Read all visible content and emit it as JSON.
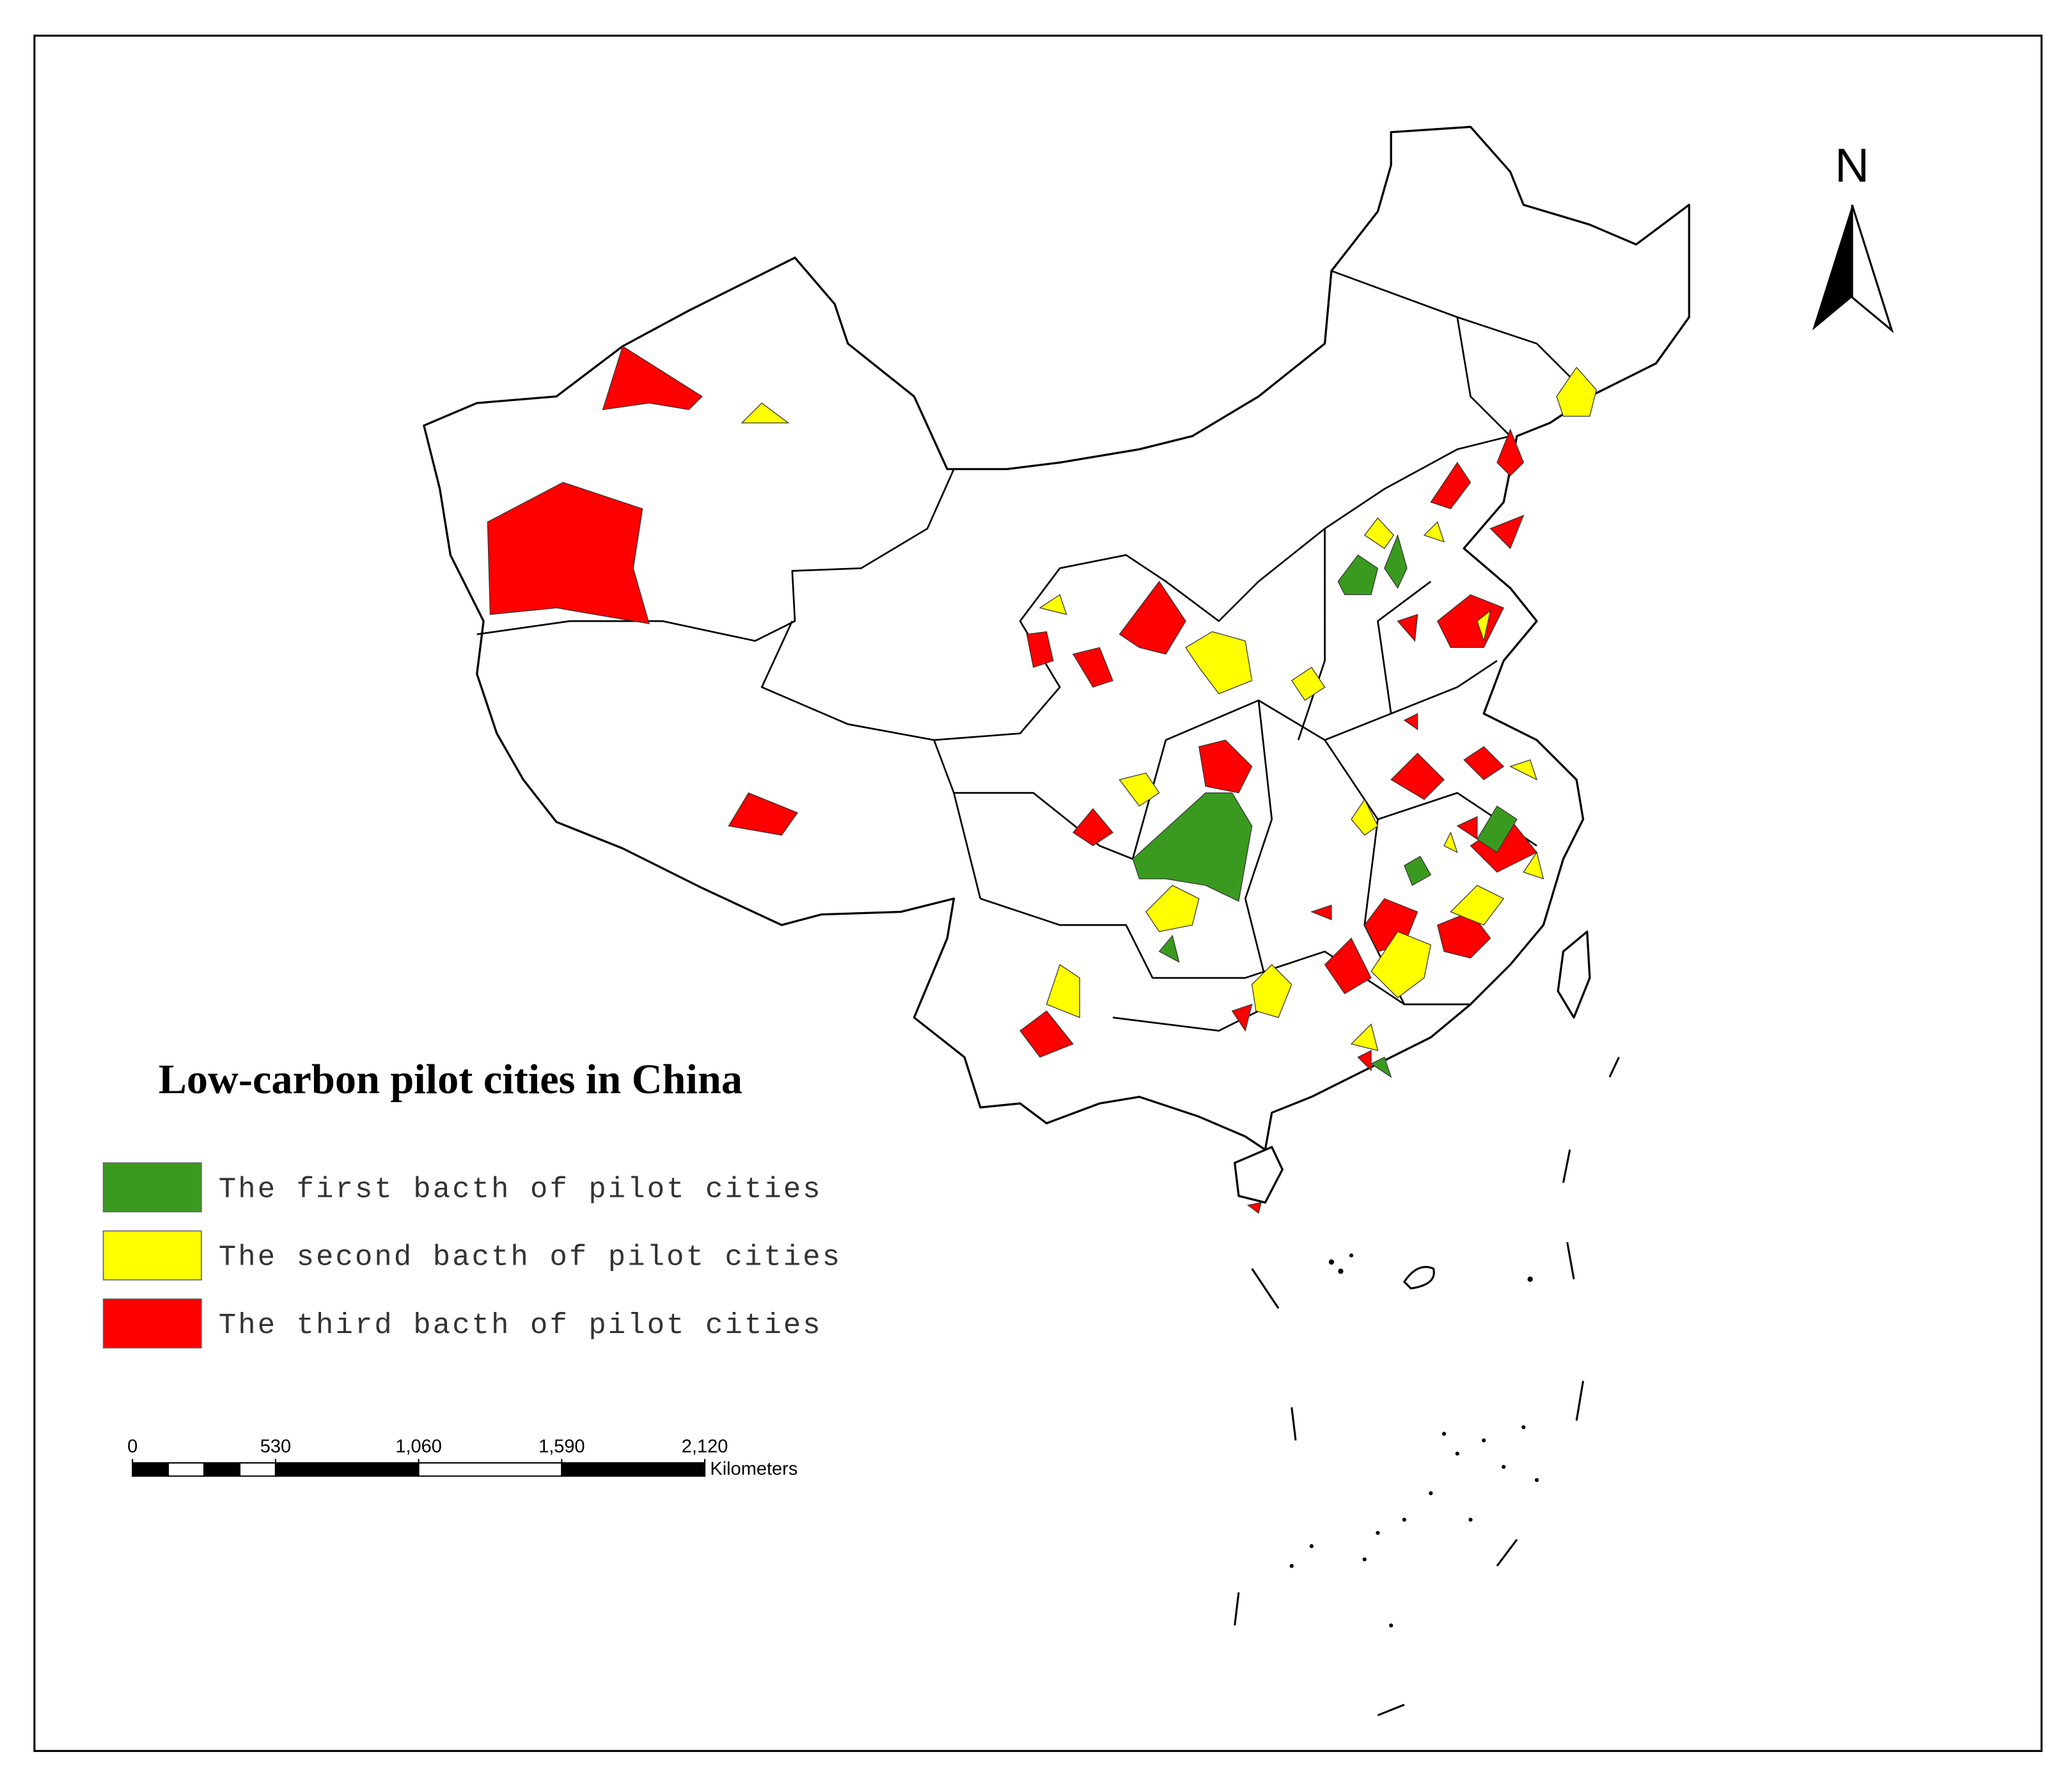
{
  "title": "Low-carbon pilot cities in China",
  "legend": [
    {
      "label": "The first bacth of pilot cities",
      "color": "#3a9a1f"
    },
    {
      "label": "The second bacth of pilot cities",
      "color": "#ffff00"
    },
    {
      "label": "The third bacth of pilot cities",
      "color": "#ff0000"
    }
  ],
  "north": "N",
  "scale_bar": {
    "unit": "Kilometers",
    "ticks": [
      0,
      530,
      {
        "value": 1060,
        "label": "1,060"
      },
      {
        "value": 1590,
        "label": "1,590"
      },
      {
        "value": 2120,
        "label": "2,120"
      }
    ]
  }
}
